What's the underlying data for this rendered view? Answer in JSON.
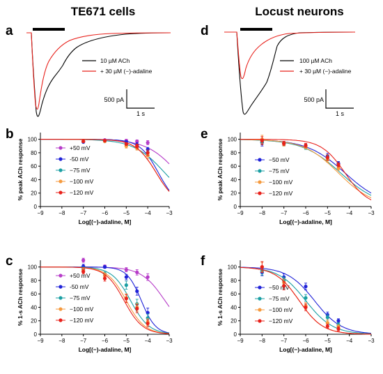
{
  "columns": [
    {
      "title": "TE671 cells"
    },
    {
      "title": "Locust neurons"
    }
  ],
  "trace_panels": [
    {
      "letter": "a",
      "legend": [
        {
          "label": "10 µM ACh",
          "color": "#000000"
        },
        {
          "label": "+ 30 µM (−)-adaline",
          "color": "#e8201a"
        }
      ],
      "scale_y": "500 pA",
      "scale_x": "1 s"
    },
    {
      "letter": "d",
      "legend": [
        {
          "label": "100 µM ACh",
          "color": "#000000"
        },
        {
          "label": "+ 30 µM (−)-adaline",
          "color": "#e8201a"
        }
      ],
      "scale_y": "500 pA",
      "scale_x": "1 s"
    }
  ],
  "chart_data": [
    {
      "panel": "b",
      "type": "scatter",
      "xlabel": "Log[(−)-adaline, M]",
      "ylabel": "% peak ACh response",
      "xlim": [
        -9,
        -3
      ],
      "ylim": [
        0,
        110
      ],
      "xticks": [
        -9,
        -8,
        -7,
        -6,
        -5,
        -4,
        -3
      ],
      "yticks": [
        0,
        20,
        40,
        60,
        80,
        100
      ],
      "series": [
        {
          "name": "+50 mV",
          "color": "#b63bc8",
          "ic50_log": -2.6,
          "hill": 0.6,
          "x": [
            -7,
            -6,
            -5,
            -4.5,
            -4
          ],
          "y": [
            97,
            99,
            98,
            97,
            95
          ],
          "err": [
            1,
            1,
            2,
            2,
            3
          ]
        },
        {
          "name": "-50 mV",
          "color": "#1f22d8",
          "ic50_log": -3.5,
          "hill": 1.0,
          "x": [
            -7,
            -6,
            -5,
            -4.5,
            -4
          ],
          "y": [
            96,
            98,
            96,
            92,
            85
          ],
          "err": [
            1,
            1,
            2,
            3,
            3
          ]
        },
        {
          "name": "−75 mV",
          "color": "#1a9fa3",
          "ic50_log": -3.2,
          "hill": 0.6,
          "x": [
            -7,
            -6,
            -5,
            -4.5,
            -4
          ],
          "y": [
            97,
            97,
            93,
            88,
            80
          ],
          "err": [
            1,
            1,
            2,
            3,
            4
          ]
        },
        {
          "name": "−100 mV",
          "color": "#f59a3e",
          "ic50_log": -3.6,
          "hill": 0.9,
          "x": [
            -7,
            -6,
            -5,
            -4.5,
            -4
          ],
          "y": [
            97,
            97,
            90,
            87,
            76
          ],
          "err": [
            1,
            1,
            3,
            3,
            5
          ]
        },
        {
          "name": "−120 mV",
          "color": "#e8201a",
          "ic50_log": -3.6,
          "hill": 0.9,
          "x": [
            -7,
            -6,
            -5,
            -4.5,
            -4
          ],
          "y": [
            97,
            98,
            93,
            90,
            80
          ],
          "err": [
            1,
            1,
            2,
            3,
            4
          ]
        }
      ]
    },
    {
      "panel": "c",
      "type": "scatter",
      "xlabel": "Log[(−)-adaline, M]",
      "ylabel": "% 1-s ACh response",
      "xlim": [
        -9,
        -3
      ],
      "ylim": [
        0,
        110
      ],
      "xticks": [
        -9,
        -8,
        -7,
        -6,
        -5,
        -4,
        -3
      ],
      "yticks": [
        0,
        20,
        40,
        60,
        80,
        100
      ],
      "series": [
        {
          "name": "+50 mV",
          "color": "#b63bc8",
          "ic50_log": -3.2,
          "hill": 0.8,
          "x": [
            -7,
            -6,
            -5,
            -4.5,
            -4
          ],
          "y": [
            110,
            101,
            96,
            92,
            85
          ],
          "err": [
            3,
            2,
            3,
            4,
            5
          ]
        },
        {
          "name": "-50 mV",
          "color": "#1f22d8",
          "ic50_log": -4.3,
          "hill": 1.3,
          "x": [
            -7,
            -6,
            -5,
            -4.5,
            -4
          ],
          "y": [
            101,
            100,
            85,
            64,
            32
          ],
          "err": [
            3,
            2,
            4,
            6,
            7
          ]
        },
        {
          "name": "−75 mV",
          "color": "#1a9fa3",
          "ic50_log": -4.8,
          "hill": 1.0,
          "x": [
            -7,
            -6,
            -5,
            -4.5,
            -4
          ],
          "y": [
            97,
            90,
            73,
            45,
            24
          ],
          "err": [
            3,
            4,
            6,
            7,
            6
          ]
        },
        {
          "name": "−100 mV",
          "color": "#f59a3e",
          "ic50_log": -5.0,
          "hill": 1.0,
          "x": [
            -7,
            -6,
            -5,
            -4.5,
            -4
          ],
          "y": [
            95,
            87,
            54,
            40,
            18
          ],
          "err": [
            3,
            4,
            6,
            6,
            5
          ]
        },
        {
          "name": "−120 mV",
          "color": "#e8201a",
          "ic50_log": -5.1,
          "hill": 1.0,
          "x": [
            -7,
            -6,
            -5,
            -4.5,
            -4
          ],
          "y": [
            93,
            83,
            53,
            38,
            16
          ],
          "err": [
            3,
            4,
            6,
            6,
            5
          ]
        }
      ]
    },
    {
      "panel": "e",
      "type": "scatter",
      "xlabel": "Log[(−)-adaline, M]",
      "ylabel": "% peak ACh response",
      "xlim": [
        -9,
        -3
      ],
      "ylim": [
        0,
        110
      ],
      "xticks": [
        -9,
        -8,
        -7,
        -6,
        -5,
        -4,
        -3
      ],
      "yticks": [
        0,
        20,
        40,
        60,
        80,
        100
      ],
      "series": [
        {
          "name": "−50 mV",
          "color": "#1f22d8",
          "ic50_log": -4.2,
          "hill": 0.5,
          "x": [
            -8,
            -7,
            -6,
            -5,
            -4.5
          ],
          "y": [
            95,
            94,
            90,
            75,
            64
          ],
          "err": [
            5,
            3,
            3,
            4,
            3
          ]
        },
        {
          "name": "−75 mV",
          "color": "#1a9fa3",
          "ic50_log": -4.4,
          "hill": 0.5,
          "x": [
            -8,
            -7,
            -6,
            -5,
            -4.5
          ],
          "y": [
            96,
            93,
            88,
            72,
            61
          ],
          "err": [
            4,
            3,
            3,
            4,
            3
          ]
        },
        {
          "name": "−100 mV",
          "color": "#f59a3e",
          "ic50_log": -4.5,
          "hill": 0.55,
          "x": [
            -8,
            -7,
            -6,
            -5,
            -4.5
          ],
          "y": [
            100,
            93,
            89,
            70,
            57
          ],
          "err": [
            6,
            3,
            3,
            4,
            3
          ]
        },
        {
          "name": "−120 mV",
          "color": "#e8201a",
          "ic50_log": -4.2,
          "hill": 0.8,
          "x": [
            -8,
            -7,
            -6,
            -5,
            -4.5
          ],
          "y": [
            98,
            94,
            91,
            73,
            62
          ],
          "err": [
            6,
            3,
            3,
            4,
            3
          ]
        }
      ]
    },
    {
      "panel": "f",
      "type": "scatter",
      "xlabel": "Log[(−)-adaline, M]",
      "ylabel": "% 1-s ACh response",
      "xlim": [
        -9,
        -3
      ],
      "ylim": [
        0,
        110
      ],
      "xticks": [
        -9,
        -8,
        -7,
        -6,
        -5,
        -4,
        -3
      ],
      "yticks": [
        0,
        20,
        40,
        60,
        80,
        100
      ],
      "series": [
        {
          "name": "−50 mV",
          "color": "#1f22d8",
          "ic50_log": -5.6,
          "hill": 0.7,
          "x": [
            -8,
            -7,
            -6,
            -5,
            -4.5
          ],
          "y": [
            92,
            85,
            71,
            29,
            20
          ],
          "err": [
            5,
            5,
            5,
            4,
            3
          ]
        },
        {
          "name": "−75 mV",
          "color": "#1a9fa3",
          "ic50_log": -6.0,
          "hill": 0.7,
          "x": [
            -8,
            -7,
            -6,
            -5,
            -4.5
          ],
          "y": [
            94,
            80,
            54,
            25,
            14
          ],
          "err": [
            6,
            5,
            5,
            4,
            3
          ]
        },
        {
          "name": "−100 mV",
          "color": "#f59a3e",
          "ic50_log": -6.3,
          "hill": 0.8,
          "x": [
            -8,
            -7,
            -6,
            -5,
            -4.5
          ],
          "y": [
            100,
            77,
            42,
            17,
            11
          ],
          "err": [
            7,
            5,
            5,
            4,
            3
          ]
        },
        {
          "name": "−120 mV",
          "color": "#e8201a",
          "ic50_log": -6.3,
          "hill": 0.8,
          "x": [
            -8,
            -7,
            -6,
            -5,
            -4.5
          ],
          "y": [
            100,
            72,
            40,
            12,
            8
          ],
          "err": [
            8,
            6,
            5,
            3,
            3
          ]
        }
      ]
    }
  ]
}
